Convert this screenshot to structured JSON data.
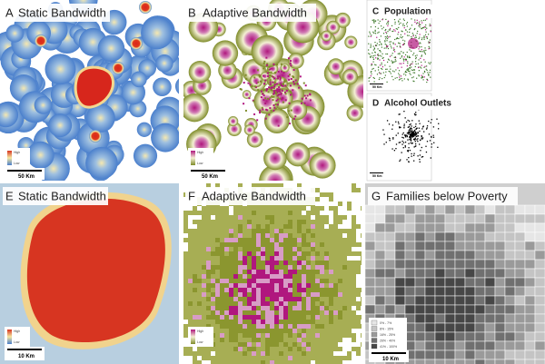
{
  "panels": [
    {
      "letter": "A",
      "title": "Static Bandwidth",
      "scale": "50 Km",
      "legend": [
        "High",
        "Low"
      ]
    },
    {
      "letter": "B",
      "title": "Adaptive Bandwidth",
      "scale": "50 Km",
      "legend": [
        "High",
        "Low"
      ]
    },
    {
      "letter": "C",
      "title": "Population",
      "scale": "50 Km"
    },
    {
      "letter": "D",
      "title": "Alcohol Outlets",
      "scale": "50 Km"
    },
    {
      "letter": "E",
      "title": "Static Bandwidth",
      "scale": "10 Km",
      "legend": [
        "High",
        "Low"
      ]
    },
    {
      "letter": "F",
      "title": "Adaptive Bandwidth",
      "legend": [
        "High",
        "Low"
      ]
    },
    {
      "letter": "G",
      "title": "Families below Poverty",
      "scale": "10 Km",
      "legend": [
        "0% - 7%",
        "8% - 15%",
        "16% - 25%",
        "26% - 40%",
        "41% - 100%"
      ]
    }
  ]
}
